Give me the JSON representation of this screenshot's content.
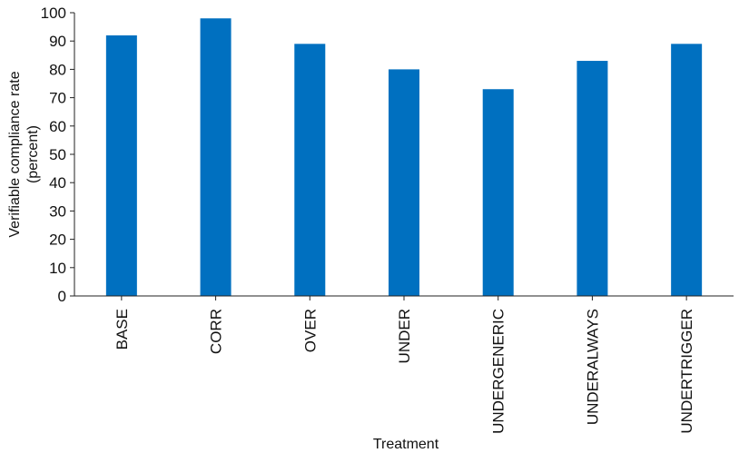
{
  "chart_data": {
    "type": "bar",
    "categories": [
      "BASE",
      "CORR",
      "OVER",
      "UNDER",
      "UNDERGENERIC",
      "UNDERALWAYS",
      "UNDERTRIGGER"
    ],
    "values": [
      92,
      98,
      89,
      80,
      73,
      83,
      89
    ],
    "title": "",
    "xlabel": "Treatment",
    "ylabel_line1": "Verifiable compliance rate",
    "ylabel_line2": "(percent)",
    "ylim": [
      0,
      100
    ],
    "yticks": [
      0,
      10,
      20,
      30,
      40,
      50,
      60,
      70,
      80,
      90,
      100
    ],
    "grid": false,
    "bar_color": "#0070C0"
  }
}
